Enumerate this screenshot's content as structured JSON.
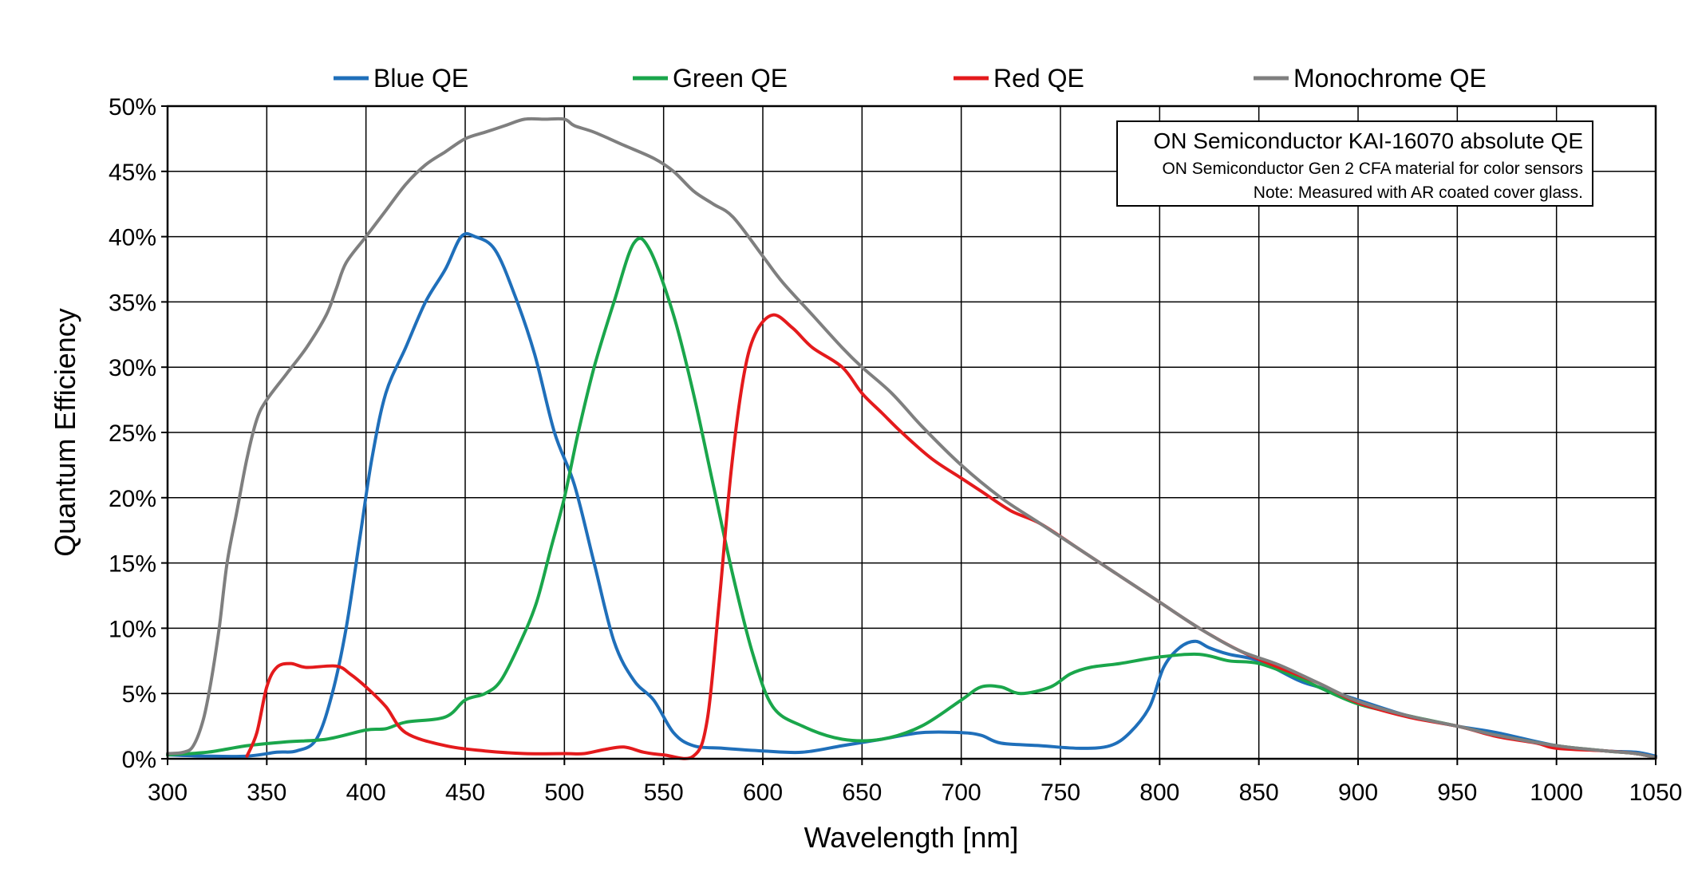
{
  "chart_data": {
    "type": "line",
    "xlabel": "Wavelength [nm]",
    "ylabel": "Quantum Efficiency",
    "xlim": [
      300,
      1050
    ],
    "ylim": [
      0,
      50
    ],
    "x_ticks": [
      300,
      350,
      400,
      450,
      500,
      550,
      600,
      650,
      700,
      750,
      800,
      850,
      900,
      950,
      1000,
      1050
    ],
    "y_ticks": [
      0,
      5,
      10,
      15,
      20,
      25,
      30,
      35,
      40,
      45,
      50
    ],
    "y_tick_labels": [
      "0%",
      "5%",
      "10%",
      "15%",
      "20%",
      "25%",
      "30%",
      "35%",
      "40%",
      "45%",
      "50%"
    ],
    "grid": true,
    "legend_position": "top",
    "annotation": {
      "title": "ON Semiconductor KAI-16070 absolute QE",
      "line1": "ON Semiconductor Gen 2 CFA material for color sensors",
      "line2": "Note: Measured with AR coated cover glass."
    },
    "series": [
      {
        "name": "Blue QE",
        "color": "#1f6fba",
        "points": [
          [
            300,
            0.3
          ],
          [
            320,
            0.2
          ],
          [
            340,
            0.2
          ],
          [
            355,
            0.5
          ],
          [
            365,
            0.6
          ],
          [
            375,
            1.5
          ],
          [
            383,
            5
          ],
          [
            390,
            10
          ],
          [
            397,
            17
          ],
          [
            403,
            23
          ],
          [
            410,
            28
          ],
          [
            420,
            31.5
          ],
          [
            430,
            35
          ],
          [
            440,
            37.5
          ],
          [
            448,
            40
          ],
          [
            455,
            40
          ],
          [
            465,
            39
          ],
          [
            475,
            35.5
          ],
          [
            485,
            31
          ],
          [
            495,
            25
          ],
          [
            505,
            21
          ],
          [
            515,
            15
          ],
          [
            525,
            9
          ],
          [
            535,
            6
          ],
          [
            545,
            4.5
          ],
          [
            555,
            2
          ],
          [
            565,
            1
          ],
          [
            580,
            0.8
          ],
          [
            600,
            0.6
          ],
          [
            620,
            0.5
          ],
          [
            640,
            1
          ],
          [
            660,
            1.5
          ],
          [
            680,
            2
          ],
          [
            700,
            2
          ],
          [
            710,
            1.8
          ],
          [
            720,
            1.2
          ],
          [
            740,
            1
          ],
          [
            760,
            0.8
          ],
          [
            775,
            1
          ],
          [
            785,
            2
          ],
          [
            795,
            4
          ],
          [
            802,
            7
          ],
          [
            810,
            8.5
          ],
          [
            818,
            9
          ],
          [
            825,
            8.5
          ],
          [
            835,
            8
          ],
          [
            850,
            7.5
          ],
          [
            870,
            6
          ],
          [
            880,
            5.5
          ],
          [
            900,
            4.5
          ],
          [
            925,
            3.3
          ],
          [
            950,
            2.5
          ],
          [
            970,
            2
          ],
          [
            1000,
            1
          ],
          [
            1025,
            0.6
          ],
          [
            1040,
            0.5
          ],
          [
            1050,
            0.2
          ]
        ]
      },
      {
        "name": "Green QE",
        "color": "#1aa64b",
        "points": [
          [
            300,
            0.3
          ],
          [
            320,
            0.5
          ],
          [
            340,
            1
          ],
          [
            360,
            1.3
          ],
          [
            380,
            1.5
          ],
          [
            400,
            2.2
          ],
          [
            410,
            2.3
          ],
          [
            420,
            2.8
          ],
          [
            440,
            3.2
          ],
          [
            450,
            4.5
          ],
          [
            460,
            5
          ],
          [
            468,
            6
          ],
          [
            478,
            9
          ],
          [
            486,
            12
          ],
          [
            493,
            16
          ],
          [
            500,
            20
          ],
          [
            507,
            25
          ],
          [
            515,
            30
          ],
          [
            525,
            35
          ],
          [
            535,
            39.5
          ],
          [
            543,
            39
          ],
          [
            555,
            34
          ],
          [
            565,
            28
          ],
          [
            575,
            21
          ],
          [
            585,
            14
          ],
          [
            595,
            8
          ],
          [
            605,
            4
          ],
          [
            620,
            2.5
          ],
          [
            640,
            1.5
          ],
          [
            660,
            1.5
          ],
          [
            680,
            2.5
          ],
          [
            700,
            4.5
          ],
          [
            710,
            5.5
          ],
          [
            720,
            5.5
          ],
          [
            730,
            5
          ],
          [
            745,
            5.5
          ],
          [
            755,
            6.5
          ],
          [
            765,
            7
          ],
          [
            780,
            7.3
          ],
          [
            800,
            7.8
          ],
          [
            820,
            8
          ],
          [
            835,
            7.5
          ],
          [
            850,
            7.3
          ],
          [
            870,
            6.2
          ],
          [
            880,
            5.5
          ],
          [
            900,
            4.2
          ],
          [
            925,
            3.3
          ],
          [
            950,
            2.5
          ],
          [
            970,
            1.8
          ],
          [
            1000,
            1
          ],
          [
            1025,
            0.6
          ],
          [
            1040,
            0.4
          ],
          [
            1050,
            0.1
          ]
        ]
      },
      {
        "name": "Red QE",
        "color": "#e41a1c",
        "points": [
          [
            340,
            0.2
          ],
          [
            345,
            2
          ],
          [
            350,
            5.5
          ],
          [
            355,
            7
          ],
          [
            362,
            7.3
          ],
          [
            370,
            7
          ],
          [
            385,
            7.1
          ],
          [
            392,
            6.5
          ],
          [
            400,
            5.5
          ],
          [
            410,
            4
          ],
          [
            420,
            2
          ],
          [
            440,
            1
          ],
          [
            460,
            0.6
          ],
          [
            480,
            0.4
          ],
          [
            500,
            0.4
          ],
          [
            510,
            0.4
          ],
          [
            520,
            0.7
          ],
          [
            530,
            0.9
          ],
          [
            540,
            0.5
          ],
          [
            550,
            0.3
          ],
          [
            565,
            0.2
          ],
          [
            572,
            3
          ],
          [
            578,
            12
          ],
          [
            584,
            22
          ],
          [
            590,
            29
          ],
          [
            596,
            32.5
          ],
          [
            605,
            34
          ],
          [
            615,
            33
          ],
          [
            625,
            31.5
          ],
          [
            640,
            30
          ],
          [
            650,
            28
          ],
          [
            660,
            26.5
          ],
          [
            670,
            25
          ],
          [
            685,
            23
          ],
          [
            700,
            21.5
          ],
          [
            710,
            20.5
          ],
          [
            725,
            19
          ],
          [
            740,
            18
          ],
          [
            760,
            16
          ],
          [
            780,
            14
          ],
          [
            800,
            12
          ],
          [
            820,
            10
          ],
          [
            840,
            8.3
          ],
          [
            860,
            7
          ],
          [
            880,
            5.8
          ],
          [
            900,
            4.3
          ],
          [
            925,
            3.2
          ],
          [
            950,
            2.5
          ],
          [
            970,
            1.7
          ],
          [
            990,
            1.2
          ],
          [
            1000,
            0.8
          ],
          [
            1025,
            0.6
          ],
          [
            1040,
            0.4
          ],
          [
            1050,
            0.1
          ]
        ]
      },
      {
        "name": "Monochrome QE",
        "color": "#7f7f7f",
        "points": [
          [
            300,
            0.4
          ],
          [
            308,
            0.5
          ],
          [
            313,
            1
          ],
          [
            318,
            3
          ],
          [
            322,
            6
          ],
          [
            326,
            10
          ],
          [
            330,
            15
          ],
          [
            335,
            19
          ],
          [
            340,
            23
          ],
          [
            345,
            26
          ],
          [
            350,
            27.5
          ],
          [
            360,
            29.5
          ],
          [
            370,
            31.5
          ],
          [
            380,
            34
          ],
          [
            385,
            36
          ],
          [
            390,
            38
          ],
          [
            400,
            40
          ],
          [
            410,
            42
          ],
          [
            420,
            44
          ],
          [
            430,
            45.5
          ],
          [
            440,
            46.5
          ],
          [
            450,
            47.5
          ],
          [
            460,
            48
          ],
          [
            470,
            48.5
          ],
          [
            480,
            49
          ],
          [
            490,
            49
          ],
          [
            500,
            49
          ],
          [
            505,
            48.5
          ],
          [
            515,
            48
          ],
          [
            530,
            47
          ],
          [
            545,
            46
          ],
          [
            555,
            45
          ],
          [
            565,
            43.5
          ],
          [
            575,
            42.5
          ],
          [
            585,
            41.5
          ],
          [
            600,
            38.5
          ],
          [
            610,
            36.5
          ],
          [
            625,
            34
          ],
          [
            640,
            31.5
          ],
          [
            650,
            30
          ],
          [
            665,
            28
          ],
          [
            680,
            25.5
          ],
          [
            700,
            22.5
          ],
          [
            720,
            20
          ],
          [
            740,
            18
          ],
          [
            760,
            16
          ],
          [
            780,
            14
          ],
          [
            800,
            12
          ],
          [
            820,
            10
          ],
          [
            840,
            8.3
          ],
          [
            860,
            7.2
          ],
          [
            880,
            5.8
          ],
          [
            900,
            4.4
          ],
          [
            925,
            3.3
          ],
          [
            950,
            2.5
          ],
          [
            970,
            1.8
          ],
          [
            1000,
            1
          ],
          [
            1025,
            0.6
          ],
          [
            1040,
            0.4
          ],
          [
            1050,
            0.1
          ]
        ]
      }
    ]
  }
}
